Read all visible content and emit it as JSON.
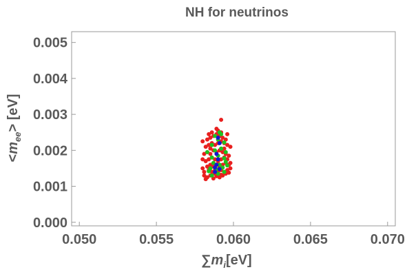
{
  "chart_data": {
    "type": "scatter",
    "title": "NH for neutrinos",
    "xlabel_sum": "∑",
    "xlabel_var": "m",
    "xlabel_sub": "i",
    "xlabel_unit": "[eV]",
    "ylabel_prefix": "<",
    "ylabel_var": "m",
    "ylabel_sub": "ee",
    "ylabel_suffix": "> [eV]",
    "xlim": [
      0.0495,
      0.0705
    ],
    "ylim": [
      -0.0001,
      0.0053
    ],
    "xticks": [
      "0.050",
      "0.055",
      "0.060",
      "0.065",
      "0.070"
    ],
    "yticks": [
      "0.000",
      "0.001",
      "0.002",
      "0.003",
      "0.004",
      "0.005"
    ],
    "grid": false,
    "series": [
      {
        "color": "#e8201f",
        "points": [
          [
            0.0582,
            0.0012
          ],
          [
            0.0583,
            0.00125
          ],
          [
            0.0585,
            0.0013
          ],
          [
            0.0587,
            0.00122
          ],
          [
            0.0589,
            0.00128
          ],
          [
            0.0591,
            0.00125
          ],
          [
            0.0593,
            0.0013
          ],
          [
            0.0595,
            0.00135
          ],
          [
            0.0597,
            0.00138
          ],
          [
            0.0581,
            0.0014
          ],
          [
            0.0584,
            0.00145
          ],
          [
            0.0586,
            0.0014
          ],
          [
            0.0588,
            0.00145
          ],
          [
            0.059,
            0.0014
          ],
          [
            0.0592,
            0.00145
          ],
          [
            0.0594,
            0.0014
          ],
          [
            0.0596,
            0.00145
          ],
          [
            0.0598,
            0.0015
          ],
          [
            0.058,
            0.0015
          ],
          [
            0.0583,
            0.00155
          ],
          [
            0.0585,
            0.0016
          ],
          [
            0.0587,
            0.00155
          ],
          [
            0.0589,
            0.0016
          ],
          [
            0.0591,
            0.00155
          ],
          [
            0.0593,
            0.0016
          ],
          [
            0.0595,
            0.00165
          ],
          [
            0.0597,
            0.0016
          ],
          [
            0.0582,
            0.0017
          ],
          [
            0.0584,
            0.00175
          ],
          [
            0.0586,
            0.0018
          ],
          [
            0.0588,
            0.00175
          ],
          [
            0.059,
            0.0017
          ],
          [
            0.0592,
            0.00175
          ],
          [
            0.0594,
            0.0018
          ],
          [
            0.0596,
            0.00175
          ],
          [
            0.0581,
            0.0019
          ],
          [
            0.0583,
            0.00195
          ],
          [
            0.0585,
            0.0019
          ],
          [
            0.0587,
            0.002
          ],
          [
            0.0589,
            0.00195
          ],
          [
            0.0591,
            0.002
          ],
          [
            0.0593,
            0.00195
          ],
          [
            0.0595,
            0.0019
          ],
          [
            0.0597,
            0.00185
          ],
          [
            0.0582,
            0.0021
          ],
          [
            0.0584,
            0.00215
          ],
          [
            0.0586,
            0.0022
          ],
          [
            0.0588,
            0.00215
          ],
          [
            0.059,
            0.0022
          ],
          [
            0.0592,
            0.00225
          ],
          [
            0.0594,
            0.0022
          ],
          [
            0.0596,
            0.00215
          ],
          [
            0.0583,
            0.0023
          ],
          [
            0.0585,
            0.00235
          ],
          [
            0.0587,
            0.0024
          ],
          [
            0.0589,
            0.00245
          ],
          [
            0.0591,
            0.0024
          ],
          [
            0.0593,
            0.00235
          ],
          [
            0.0595,
            0.0023
          ],
          [
            0.0586,
            0.0025
          ],
          [
            0.059,
            0.00255
          ],
          [
            0.0592,
            0.0025
          ],
          [
            0.0589,
            0.0026
          ],
          [
            0.0592,
            0.00285
          ],
          [
            0.0581,
            0.0013
          ],
          [
            0.058,
            0.00175
          ],
          [
            0.0598,
            0.00165
          ],
          [
            0.0598,
            0.0021
          ],
          [
            0.058,
            0.00225
          ],
          [
            0.0584,
            0.00245
          ],
          [
            0.0596,
            0.00245
          ],
          [
            0.0588,
            0.00135
          ],
          [
            0.0592,
            0.00132
          ],
          [
            0.0585,
            0.00205
          ],
          [
            0.0594,
            0.00205
          ]
        ]
      },
      {
        "color": "#1fc21f",
        "points": [
          [
            0.0586,
            0.0013
          ],
          [
            0.059,
            0.00135
          ],
          [
            0.0594,
            0.0014
          ],
          [
            0.0585,
            0.0015
          ],
          [
            0.0589,
            0.00148
          ],
          [
            0.0593,
            0.00152
          ],
          [
            0.0587,
            0.00165
          ],
          [
            0.0591,
            0.0016
          ],
          [
            0.0595,
            0.00168
          ],
          [
            0.0586,
            0.0018
          ],
          [
            0.059,
            0.00185
          ],
          [
            0.0594,
            0.00178
          ],
          [
            0.0588,
            0.002
          ],
          [
            0.0592,
            0.00205
          ],
          [
            0.0586,
            0.00215
          ],
          [
            0.059,
            0.0023
          ],
          [
            0.0594,
            0.00222
          ],
          [
            0.0588,
            0.0024
          ],
          [
            0.0592,
            0.00245
          ],
          [
            0.0591,
            0.0025
          ],
          [
            0.0584,
            0.00142
          ],
          [
            0.0596,
            0.00158
          ],
          [
            0.0583,
            0.00195
          ],
          [
            0.0595,
            0.00195
          ]
        ]
      },
      {
        "color": "#1515d0",
        "points": [
          [
            0.0588,
            0.0014
          ],
          [
            0.0591,
            0.00148
          ],
          [
            0.0589,
            0.0016
          ],
          [
            0.059,
            0.00175
          ],
          [
            0.0589,
            0.0019
          ],
          [
            0.0591,
            0.0022
          ],
          [
            0.059,
            0.00235
          ],
          [
            0.0588,
            0.00152
          ]
        ]
      }
    ]
  }
}
